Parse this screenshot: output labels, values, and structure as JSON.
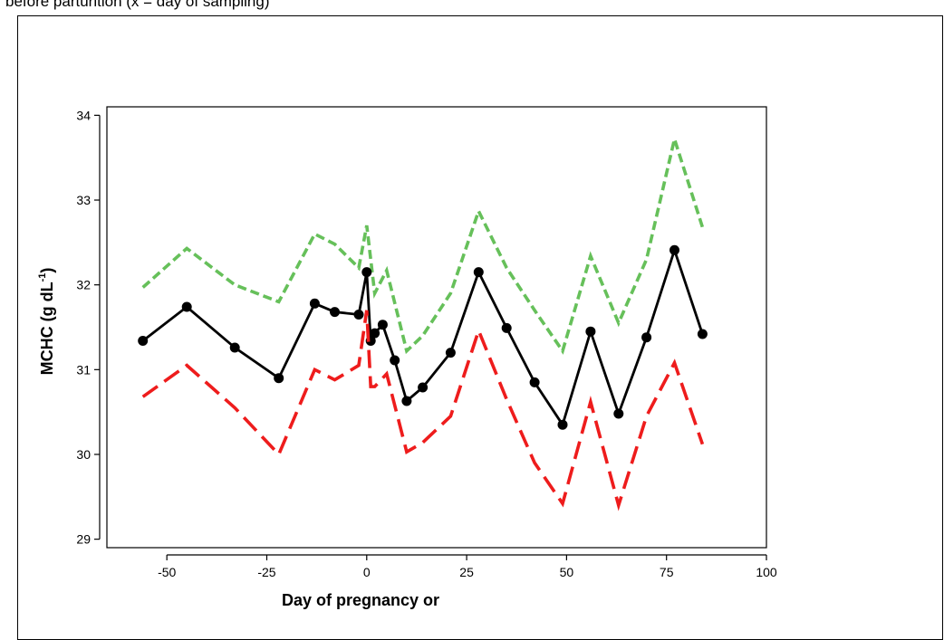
{
  "caption": "before parturition (x = day of sampling)",
  "chart_data": {
    "type": "line",
    "title": "",
    "xlabel": "Day of pregnancy or",
    "ylabel": "MCHC (g dL",
    "ylabel_sup": "-1",
    "ylabel_close": ")",
    "xlim": [
      -65,
      100
    ],
    "ylim": [
      28.9,
      34.1
    ],
    "xticks": [
      -50,
      -25,
      0,
      25,
      50,
      75,
      100
    ],
    "yticks": [
      29,
      30,
      31,
      32,
      33,
      34
    ],
    "grid": false,
    "legend": "none",
    "series": [
      {
        "role": "upper",
        "color": "#66c05a",
        "style": "short-dash",
        "x": [
          -56,
          -45,
          -33,
          -22,
          -13,
          -8,
          -2,
          0,
          2,
          5,
          10,
          14,
          21,
          28,
          35,
          42,
          49,
          56,
          63,
          70,
          77,
          84
        ],
        "values": [
          31.97,
          32.43,
          32.0,
          31.8,
          32.6,
          32.48,
          32.2,
          32.7,
          31.9,
          32.17,
          31.22,
          31.4,
          31.9,
          32.87,
          32.2,
          31.7,
          31.22,
          32.34,
          31.55,
          32.3,
          33.72,
          32.68
        ]
      },
      {
        "role": "mean",
        "color": "#000000",
        "style": "solid",
        "markers": true,
        "x": [
          -56,
          -45,
          -33,
          -22,
          -13,
          -8,
          -2,
          0,
          1,
          2,
          4,
          7,
          10,
          14,
          21,
          28,
          35,
          42,
          49,
          56,
          63,
          70,
          77,
          84
        ],
        "values": [
          31.34,
          31.74,
          31.26,
          30.9,
          31.78,
          31.68,
          31.65,
          32.15,
          31.34,
          31.43,
          31.53,
          31.11,
          30.63,
          30.79,
          31.2,
          32.15,
          31.49,
          30.85,
          30.35,
          31.45,
          30.48,
          31.38,
          32.41,
          31.42
        ]
      },
      {
        "role": "lower",
        "color": "#ee1c1c",
        "style": "long-dash",
        "x": [
          -56,
          -45,
          -33,
          -22,
          -13,
          -8,
          -2,
          0,
          1,
          2,
          5,
          10,
          14,
          21,
          28,
          35,
          42,
          49,
          56,
          63,
          70,
          77,
          84
        ],
        "values": [
          30.68,
          31.05,
          30.55,
          30.0,
          31.0,
          30.88,
          31.05,
          31.7,
          30.8,
          30.8,
          30.95,
          30.03,
          30.14,
          30.45,
          31.46,
          30.65,
          29.9,
          29.42,
          30.62,
          29.4,
          30.45,
          31.08,
          30.12
        ]
      }
    ]
  }
}
